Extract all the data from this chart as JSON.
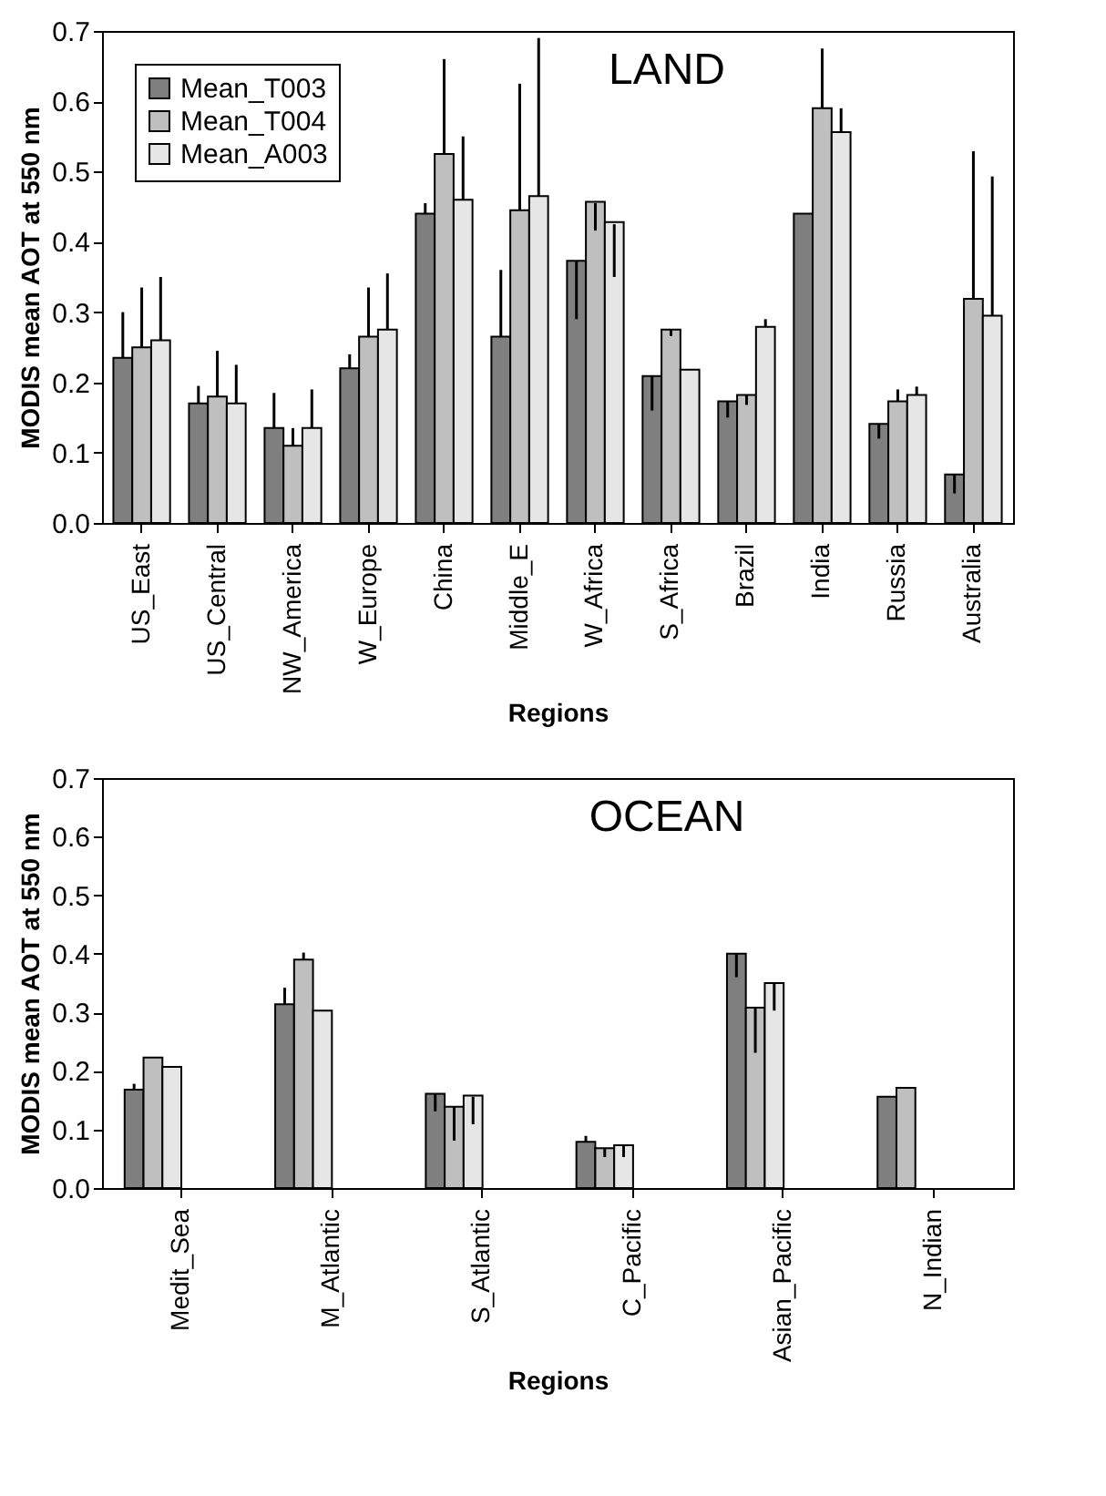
{
  "chart_data": [
    {
      "type": "bar",
      "title": "LAND",
      "xlabel": "Regions",
      "ylabel": "MODIS mean AOT at 550 nm",
      "categories": [
        "US_East",
        "US_Central",
        "NW_America",
        "W_Europe",
        "China",
        "Middle_E",
        "W_Africa",
        "S_Africa",
        "Brazil",
        "India",
        "Russia",
        "Australia"
      ],
      "series": [
        {
          "name": "Mean_T003",
          "color": "#7f7f7f",
          "values": [
            0.235,
            0.17,
            0.135,
            0.22,
            0.44,
            0.265,
            0.373,
            0.209,
            0.173,
            0.44,
            0.141,
            0.069
          ],
          "errors": [
            [
              0.235,
              0.3
            ],
            [
              0.17,
              0.195
            ],
            [
              0.135,
              0.185
            ],
            [
              0.22,
              0.24
            ],
            [
              0.44,
              0.455
            ],
            [
              0.265,
              0.36
            ],
            [
              0.29,
              0.373
            ],
            [
              0.16,
              0.209
            ],
            [
              0.15,
              0.173
            ],
            null,
            [
              0.12,
              0.141
            ],
            [
              0.042,
              0.069
            ]
          ]
        },
        {
          "name": "Mean_T004",
          "color": "#bfbfbf",
          "values": [
            0.25,
            0.18,
            0.11,
            0.265,
            0.525,
            0.445,
            0.457,
            0.275,
            0.182,
            0.59,
            0.173,
            0.319
          ],
          "errors": [
            [
              0.25,
              0.335
            ],
            [
              0.18,
              0.245
            ],
            [
              0.11,
              0.135
            ],
            [
              0.265,
              0.335
            ],
            [
              0.525,
              0.66
            ],
            [
              0.445,
              0.625
            ],
            [
              0.416,
              0.455
            ],
            [
              0.266,
              0.275
            ],
            [
              0.168,
              0.182
            ],
            [
              0.59,
              0.675
            ],
            [
              0.173,
              0.19
            ],
            [
              0.319,
              0.529
            ]
          ]
        },
        {
          "name": "Mean_A003",
          "color": "#e6e6e6",
          "values": [
            0.26,
            0.17,
            0.135,
            0.275,
            0.46,
            0.465,
            0.428,
            0.218,
            0.279,
            0.556,
            0.182,
            0.295
          ],
          "errors": [
            [
              0.26,
              0.35
            ],
            [
              0.17,
              0.225
            ],
            [
              0.135,
              0.19
            ],
            [
              0.275,
              0.355
            ],
            [
              0.46,
              0.55
            ],
            [
              0.465,
              0.69
            ],
            [
              0.35,
              0.425
            ],
            null,
            [
              0.279,
              0.29
            ],
            [
              0.556,
              0.59
            ],
            [
              0.182,
              0.194
            ],
            [
              0.295,
              0.493
            ]
          ]
        }
      ],
      "ylim": [
        0,
        0.7
      ],
      "yticks": [
        {
          "value": 0,
          "label": "0.0"
        },
        {
          "value": 0.1,
          "label": "0.1"
        },
        {
          "value": 0.2,
          "label": "0.2"
        },
        {
          "value": 0.3,
          "label": "0.3"
        },
        {
          "value": 0.4,
          "label": "0.4"
        },
        {
          "value": 0.5,
          "label": "0.5"
        },
        {
          "value": 0.6,
          "label": "0.6"
        },
        {
          "value": 0.7,
          "label": "0.7"
        }
      ],
      "legend": "top left"
    },
    {
      "type": "bar",
      "title": "OCEAN",
      "xlabel": "Regions",
      "ylabel": "MODIS mean AOT at 550 nm",
      "categories": [
        "Medit_Sea",
        "M_Atlantic",
        "S_Atlantic",
        "C_Pacific",
        "Asian_Pacific",
        "N_Indian"
      ],
      "series": [
        {
          "name": "Mean_T003",
          "color": "#7f7f7f",
          "values": [
            0.168,
            0.314,
            0.161,
            0.079,
            0.4,
            0.156
          ],
          "errors": [
            [
              0.168,
              0.178
            ],
            [
              0.314,
              0.342
            ],
            [
              0.131,
              0.161
            ],
            [
              0.079,
              0.089
            ],
            [
              0.36,
              0.4
            ],
            null
          ]
        },
        {
          "name": "Mean_T004",
          "color": "#bfbfbf",
          "values": [
            0.223,
            0.39,
            0.139,
            0.068,
            0.308,
            0.171
          ],
          "errors": [
            null,
            [
              0.39,
              0.402
            ],
            [
              0.081,
              0.139
            ],
            [
              0.053,
              0.068
            ],
            [
              0.231,
              0.308
            ],
            null
          ]
        },
        {
          "name": "Mean_A003",
          "color": "#e6e6e6",
          "values": [
            0.207,
            0.303,
            0.158,
            0.073,
            0.35,
            null
          ],
          "errors": [
            null,
            null,
            [
              0.109,
              0.156
            ],
            [
              0.053,
              0.073
            ],
            [
              0.303,
              0.35
            ],
            null
          ]
        }
      ],
      "ylim": [
        0,
        0.7
      ],
      "yticks": [
        {
          "value": 0,
          "label": "0.0"
        },
        {
          "value": 0.1,
          "label": "0.1"
        },
        {
          "value": 0.2,
          "label": "0.2"
        },
        {
          "value": 0.3,
          "label": "0.3"
        },
        {
          "value": 0.4,
          "label": "0.4"
        },
        {
          "value": 0.5,
          "label": "0.5"
        },
        {
          "value": 0.6,
          "label": "0.6"
        },
        {
          "value": 0.7,
          "label": "0.7"
        }
      ],
      "legend": "top left"
    }
  ]
}
